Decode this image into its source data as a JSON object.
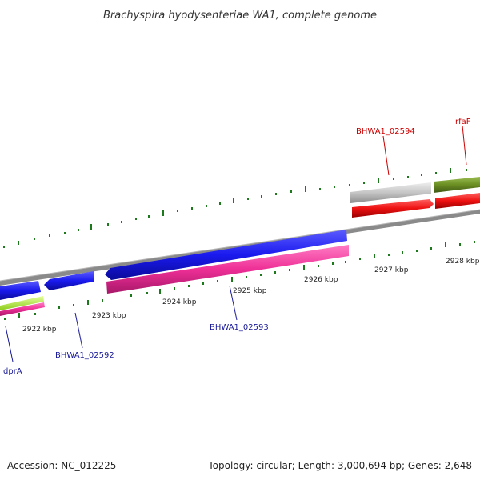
{
  "title": "Brachyspira hyodysenteriae WA1, complete genome",
  "accession": "Accession: NC_012225",
  "topology": "Topology: circular; Length: 3,000,694 bp; Genes: 2,648",
  "scale_labels": [
    "2922 kbp",
    "2923 kbp",
    "2924 kbp",
    "2925 kbp",
    "2926 kbp",
    "2927 kbp",
    "2928 kbp"
  ],
  "gene_labels": {
    "dprA": "dprA",
    "bhwa1_02592": "BHWA1_02592",
    "bhwa1_02593": "BHWA1_02593",
    "bhwa1_02594": "BHWA1_02594",
    "rfaF": "rfaF"
  },
  "colors": {
    "backbone": "#8a8a8a",
    "cds_blue": "#1a1aee",
    "rna_pink": "#ee2f96",
    "gene_red": "#ee1111",
    "gene_grey": "#c4c4c4",
    "gene_olive": "#6b8e23",
    "gene_lime": "#b4ee3b",
    "tick_green": "#1c7a1c",
    "label_blue": "#1a1a99",
    "label_red": "#cc0000"
  }
}
